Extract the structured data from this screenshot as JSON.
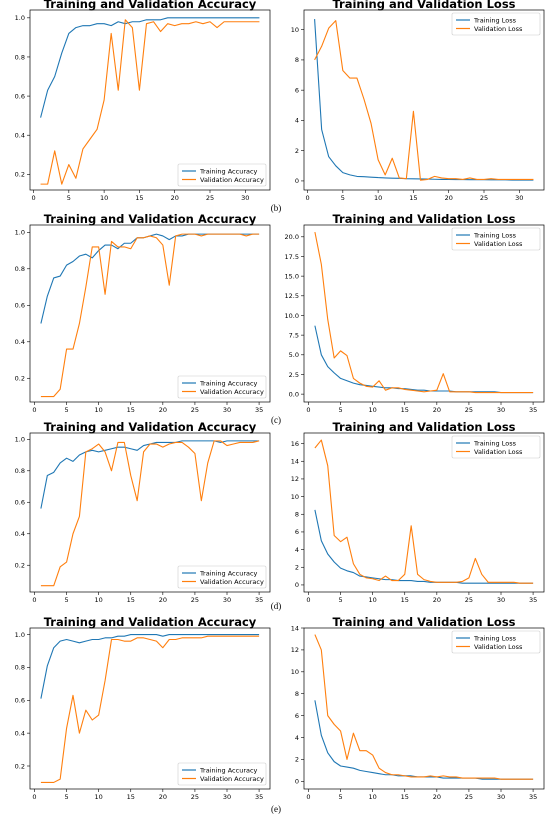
{
  "colors": {
    "training": "#1f77b4",
    "validation": "#ff7f0e"
  },
  "chart_data": [
    {
      "type": "line",
      "row": 0,
      "col": 0,
      "title": "Training and Validation Accuracy",
      "x": [
        1,
        2,
        3,
        4,
        5,
        6,
        7,
        8,
        9,
        10,
        11,
        12,
        13,
        14,
        15,
        16,
        17,
        18,
        19,
        20,
        21,
        22,
        23,
        24,
        25,
        26,
        27,
        28,
        29,
        30,
        31,
        32
      ],
      "xlim": [
        -0.5,
        33.5
      ],
      "ylim": [
        0.12,
        1.04
      ],
      "xticks": [
        0,
        5,
        10,
        15,
        20,
        25,
        30
      ],
      "yticks": [
        0.2,
        0.4,
        0.6,
        0.8,
        1.0
      ],
      "legend_loc": "lower-right",
      "series": [
        {
          "name": "Training Accuracy",
          "values": [
            0.49,
            0.63,
            0.7,
            0.82,
            0.92,
            0.95,
            0.96,
            0.96,
            0.97,
            0.97,
            0.96,
            0.98,
            0.97,
            0.98,
            0.98,
            0.99,
            0.99,
            0.99,
            1.0,
            1.0,
            1.0,
            1.0,
            1.0,
            1.0,
            1.0,
            1.0,
            1.0,
            1.0,
            1.0,
            1.0,
            1.0,
            1.0
          ]
        },
        {
          "name": "Validation Accuracy",
          "values": [
            0.15,
            0.15,
            0.32,
            0.15,
            0.25,
            0.18,
            0.33,
            0.38,
            0.43,
            0.58,
            0.92,
            0.63,
            0.99,
            0.95,
            0.63,
            0.97,
            0.98,
            0.93,
            0.97,
            0.96,
            0.97,
            0.97,
            0.98,
            0.97,
            0.98,
            0.95,
            0.98,
            0.98,
            0.98,
            0.98,
            0.98,
            0.98
          ]
        }
      ]
    },
    {
      "type": "line",
      "row": 0,
      "col": 1,
      "title": "Training and Validation Loss",
      "x": [
        1,
        2,
        3,
        4,
        5,
        6,
        7,
        8,
        9,
        10,
        11,
        12,
        13,
        14,
        15,
        16,
        17,
        18,
        19,
        20,
        21,
        22,
        23,
        24,
        25,
        26,
        27,
        28,
        29,
        30,
        31,
        32
      ],
      "xlim": [
        -0.5,
        33.5
      ],
      "ylim": [
        -0.6,
        11.3
      ],
      "xticks": [
        0,
        5,
        10,
        15,
        20,
        25,
        30
      ],
      "yticks": [
        0,
        2,
        4,
        6,
        8,
        10
      ],
      "legend_loc": "upper-right",
      "series": [
        {
          "name": "Training Loss",
          "values": [
            10.7,
            3.4,
            1.6,
            1.0,
            0.55,
            0.4,
            0.3,
            0.28,
            0.25,
            0.22,
            0.2,
            0.18,
            0.17,
            0.15,
            0.14,
            0.13,
            0.12,
            0.11,
            0.1,
            0.1,
            0.09,
            0.09,
            0.08,
            0.08,
            0.08,
            0.07,
            0.07,
            0.07,
            0.06,
            0.06,
            0.06,
            0.06
          ]
        },
        {
          "name": "Validation Loss",
          "values": [
            8.0,
            8.9,
            10.1,
            10.6,
            7.3,
            6.8,
            6.8,
            5.4,
            3.8,
            1.4,
            0.4,
            1.5,
            0.2,
            0.15,
            4.6,
            0.05,
            0.1,
            0.3,
            0.2,
            0.15,
            0.15,
            0.1,
            0.2,
            0.1,
            0.1,
            0.15,
            0.1,
            0.1,
            0.1,
            0.1,
            0.1,
            0.1
          ]
        }
      ]
    },
    {
      "type": "line",
      "row": 1,
      "col": 0,
      "title": "Training and Validation Accuracy",
      "x": [
        1,
        2,
        3,
        4,
        5,
        6,
        7,
        8,
        9,
        10,
        11,
        12,
        13,
        14,
        15,
        16,
        17,
        18,
        19,
        20,
        21,
        22,
        23,
        24,
        25,
        26,
        27,
        28,
        29,
        30,
        31,
        32,
        33,
        34,
        35
      ],
      "xlim": [
        -0.7,
        36.7
      ],
      "ylim": [
        0.07,
        1.04
      ],
      "xticks": [
        0,
        5,
        10,
        15,
        20,
        25,
        30,
        35
      ],
      "yticks": [
        0.2,
        0.4,
        0.6,
        0.8,
        1.0
      ],
      "legend_loc": "lower-right",
      "series": [
        {
          "name": "Training Accuracy",
          "values": [
            0.5,
            0.65,
            0.75,
            0.76,
            0.82,
            0.84,
            0.87,
            0.88,
            0.86,
            0.9,
            0.93,
            0.93,
            0.91,
            0.94,
            0.94,
            0.97,
            0.97,
            0.98,
            0.99,
            0.98,
            0.96,
            0.98,
            0.98,
            0.99,
            0.99,
            0.99,
            0.99,
            0.99,
            0.99,
            0.99,
            0.99,
            0.99,
            0.99,
            0.99,
            0.99
          ]
        },
        {
          "name": "Validation Accuracy",
          "values": [
            0.1,
            0.1,
            0.1,
            0.14,
            0.36,
            0.36,
            0.5,
            0.7,
            0.92,
            0.92,
            0.66,
            0.95,
            0.92,
            0.92,
            0.91,
            0.97,
            0.97,
            0.98,
            0.97,
            0.93,
            0.71,
            0.98,
            0.99,
            0.99,
            0.99,
            0.98,
            0.99,
            0.99,
            0.99,
            0.99,
            0.99,
            0.99,
            0.98,
            0.99,
            0.99
          ]
        }
      ]
    },
    {
      "type": "line",
      "row": 1,
      "col": 1,
      "title": "Training and Validation Loss",
      "x": [
        1,
        2,
        3,
        4,
        5,
        6,
        7,
        8,
        9,
        10,
        11,
        12,
        13,
        14,
        15,
        16,
        17,
        18,
        19,
        20,
        21,
        22,
        23,
        24,
        25,
        26,
        27,
        28,
        29,
        30,
        31,
        32,
        33,
        34,
        35
      ],
      "xlim": [
        -0.7,
        36.7
      ],
      "ylim": [
        -1.0,
        21.5
      ],
      "xticks": [
        0,
        5,
        10,
        15,
        20,
        25,
        30,
        35
      ],
      "yticks": [
        0.0,
        2.5,
        5.0,
        7.5,
        10.0,
        12.5,
        15.0,
        17.5,
        20.0
      ],
      "legend_loc": "upper-right",
      "series": [
        {
          "name": "Training Loss",
          "values": [
            8.7,
            5.0,
            3.5,
            2.7,
            2.0,
            1.7,
            1.4,
            1.2,
            1.1,
            1.0,
            0.9,
            0.8,
            0.8,
            0.7,
            0.7,
            0.6,
            0.5,
            0.5,
            0.4,
            0.4,
            0.4,
            0.4,
            0.3,
            0.3,
            0.3,
            0.3,
            0.3,
            0.3,
            0.3,
            0.2,
            0.2,
            0.2,
            0.2,
            0.2,
            0.2
          ]
        },
        {
          "name": "Validation Loss",
          "values": [
            20.6,
            16.5,
            9.5,
            4.6,
            5.5,
            4.9,
            2.0,
            1.4,
            1.0,
            0.9,
            1.7,
            0.5,
            0.8,
            0.8,
            0.6,
            0.5,
            0.4,
            0.3,
            0.4,
            0.5,
            2.6,
            0.3,
            0.3,
            0.3,
            0.3,
            0.2,
            0.2,
            0.2,
            0.2,
            0.2,
            0.2,
            0.2,
            0.2,
            0.2,
            0.2
          ]
        }
      ]
    },
    {
      "type": "line",
      "row": 2,
      "col": 0,
      "title": "Training and Validation Accuracy",
      "x": [
        1,
        2,
        3,
        4,
        5,
        6,
        7,
        8,
        9,
        10,
        11,
        12,
        13,
        14,
        15,
        16,
        17,
        18,
        19,
        20,
        21,
        22,
        23,
        24,
        25,
        26,
        27,
        28,
        29,
        30,
        31,
        32,
        33,
        34,
        35
      ],
      "xlim": [
        -0.7,
        36.7
      ],
      "ylim": [
        0.03,
        1.04
      ],
      "xticks": [
        0,
        5,
        10,
        15,
        20,
        25,
        30,
        35
      ],
      "yticks": [
        0.2,
        0.4,
        0.6,
        0.8,
        1.0
      ],
      "legend_loc": "lower-right",
      "series": [
        {
          "name": "Training Accuracy",
          "values": [
            0.56,
            0.77,
            0.79,
            0.85,
            0.88,
            0.86,
            0.9,
            0.92,
            0.93,
            0.92,
            0.93,
            0.94,
            0.95,
            0.95,
            0.94,
            0.93,
            0.96,
            0.97,
            0.98,
            0.98,
            0.98,
            0.98,
            0.99,
            0.99,
            0.99,
            0.99,
            0.99,
            0.99,
            0.98,
            0.99,
            0.99,
            0.99,
            0.99,
            0.99,
            0.99
          ]
        },
        {
          "name": "Validation Accuracy",
          "values": [
            0.07,
            0.07,
            0.07,
            0.19,
            0.22,
            0.4,
            0.51,
            0.92,
            0.94,
            0.97,
            0.92,
            0.8,
            0.98,
            0.98,
            0.77,
            0.61,
            0.92,
            0.97,
            0.97,
            0.95,
            0.97,
            0.98,
            0.98,
            0.95,
            0.91,
            0.61,
            0.85,
            0.99,
            0.99,
            0.96,
            0.97,
            0.98,
            0.98,
            0.98,
            0.99
          ]
        }
      ]
    },
    {
      "type": "line",
      "row": 2,
      "col": 1,
      "title": "Training and Validation Loss",
      "x": [
        1,
        2,
        3,
        4,
        5,
        6,
        7,
        8,
        9,
        10,
        11,
        12,
        13,
        14,
        15,
        16,
        17,
        18,
        19,
        20,
        21,
        22,
        23,
        24,
        25,
        26,
        27,
        28,
        29,
        30,
        31,
        32,
        33,
        34,
        35
      ],
      "xlim": [
        -0.7,
        36.7
      ],
      "ylim": [
        -0.8,
        17.2
      ],
      "xticks": [
        0,
        5,
        10,
        15,
        20,
        25,
        30,
        35
      ],
      "yticks": [
        0,
        2,
        4,
        6,
        8,
        10,
        12,
        14,
        16
      ],
      "legend_loc": "upper-right",
      "series": [
        {
          "name": "Training Loss",
          "values": [
            8.5,
            5.0,
            3.5,
            2.6,
            1.9,
            1.6,
            1.4,
            1.0,
            0.9,
            0.8,
            0.7,
            0.6,
            0.6,
            0.5,
            0.5,
            0.5,
            0.4,
            0.4,
            0.3,
            0.3,
            0.3,
            0.3,
            0.3,
            0.2,
            0.2,
            0.2,
            0.2,
            0.2,
            0.2,
            0.2,
            0.2,
            0.2,
            0.2,
            0.2,
            0.2
          ]
        },
        {
          "name": "Validation Loss",
          "values": [
            15.5,
            16.4,
            13.5,
            5.6,
            4.9,
            5.4,
            2.4,
            1.2,
            0.8,
            0.7,
            0.5,
            1.0,
            0.5,
            0.5,
            1.2,
            6.7,
            1.2,
            0.6,
            0.4,
            0.3,
            0.3,
            0.3,
            0.3,
            0.4,
            0.8,
            3.0,
            1.2,
            0.3,
            0.3,
            0.3,
            0.3,
            0.3,
            0.2,
            0.2,
            0.2
          ]
        }
      ]
    },
    {
      "type": "line",
      "row": 3,
      "col": 0,
      "title": "Training and Validation Accuracy",
      "x": [
        1,
        2,
        3,
        4,
        5,
        6,
        7,
        8,
        9,
        10,
        11,
        12,
        13,
        14,
        15,
        16,
        17,
        18,
        19,
        20,
        21,
        22,
        23,
        24,
        25,
        26,
        27,
        28,
        29,
        30,
        31,
        32,
        33,
        34,
        35
      ],
      "xlim": [
        -0.7,
        36.7
      ],
      "ylim": [
        0.06,
        1.04
      ],
      "xticks": [
        0,
        5,
        10,
        15,
        20,
        25,
        30,
        35
      ],
      "yticks": [
        0.2,
        0.4,
        0.6,
        0.8,
        1.0
      ],
      "legend_loc": "lower-right",
      "series": [
        {
          "name": "Training Accuracy",
          "values": [
            0.61,
            0.81,
            0.92,
            0.96,
            0.97,
            0.96,
            0.95,
            0.96,
            0.97,
            0.97,
            0.98,
            0.98,
            0.99,
            0.99,
            1.0,
            1.0,
            1.0,
            1.0,
            1.0,
            0.99,
            1.0,
            1.0,
            1.0,
            1.0,
            1.0,
            1.0,
            1.0,
            1.0,
            1.0,
            1.0,
            1.0,
            1.0,
            1.0,
            1.0,
            1.0
          ]
        },
        {
          "name": "Validation Accuracy",
          "values": [
            0.1,
            0.1,
            0.1,
            0.12,
            0.43,
            0.63,
            0.4,
            0.54,
            0.48,
            0.51,
            0.72,
            0.97,
            0.97,
            0.96,
            0.96,
            0.98,
            0.98,
            0.97,
            0.96,
            0.92,
            0.97,
            0.97,
            0.98,
            0.98,
            0.98,
            0.98,
            0.99,
            0.99,
            0.99,
            0.99,
            0.99,
            0.99,
            0.99,
            0.99,
            0.99
          ]
        }
      ]
    },
    {
      "type": "line",
      "row": 3,
      "col": 1,
      "title": "Training and Validation Loss",
      "x": [
        1,
        2,
        3,
        4,
        5,
        6,
        7,
        8,
        9,
        10,
        11,
        12,
        13,
        14,
        15,
        16,
        17,
        18,
        19,
        20,
        21,
        22,
        23,
        24,
        25,
        26,
        27,
        28,
        29,
        30,
        31,
        32,
        33,
        34,
        35
      ],
      "xlim": [
        -0.7,
        36.7
      ],
      "ylim": [
        -0.7,
        14.0
      ],
      "xticks": [
        0,
        5,
        10,
        15,
        20,
        25,
        30,
        35
      ],
      "yticks": [
        0,
        2,
        4,
        6,
        8,
        10,
        12,
        14
      ],
      "legend_loc": "upper-right",
      "series": [
        {
          "name": "Training Loss",
          "values": [
            7.4,
            4.2,
            2.6,
            1.8,
            1.4,
            1.3,
            1.2,
            1.0,
            0.9,
            0.8,
            0.7,
            0.6,
            0.6,
            0.5,
            0.5,
            0.5,
            0.4,
            0.4,
            0.4,
            0.4,
            0.3,
            0.3,
            0.3,
            0.3,
            0.3,
            0.3,
            0.2,
            0.2,
            0.2,
            0.2,
            0.2,
            0.2,
            0.2,
            0.2,
            0.2
          ]
        },
        {
          "name": "Validation Loss",
          "values": [
            13.4,
            12.0,
            6.0,
            5.2,
            4.6,
            2.0,
            4.4,
            2.8,
            2.8,
            2.4,
            1.2,
            0.8,
            0.6,
            0.6,
            0.5,
            0.4,
            0.4,
            0.4,
            0.5,
            0.4,
            0.5,
            0.4,
            0.4,
            0.3,
            0.3,
            0.3,
            0.3,
            0.3,
            0.3,
            0.2,
            0.2,
            0.2,
            0.2,
            0.2,
            0.2
          ]
        }
      ]
    }
  ],
  "captions": [
    "(b)",
    "(c)",
    "(d)",
    "(e)"
  ]
}
